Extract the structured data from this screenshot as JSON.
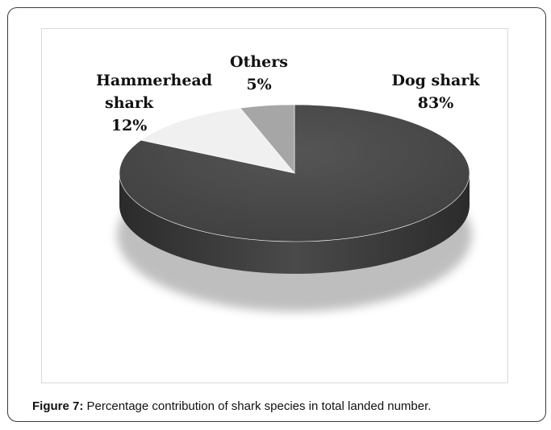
{
  "caption": {
    "label": "Figure 7:",
    "text": " Percentage contribution of shark species in total landed number."
  },
  "chart_data": {
    "type": "pie",
    "style": "3d",
    "categories": [
      "Dog shark",
      "Hammerhead shark",
      "Others"
    ],
    "values": [
      83,
      12,
      5
    ],
    "labels": [
      "Dog shark",
      "Hammerhead shark",
      "Others"
    ],
    "percent_labels": [
      "83%",
      "12%",
      "5%"
    ],
    "colors": [
      "#4a4a4a",
      "#f0f0f0",
      "#a6a6a6"
    ]
  }
}
